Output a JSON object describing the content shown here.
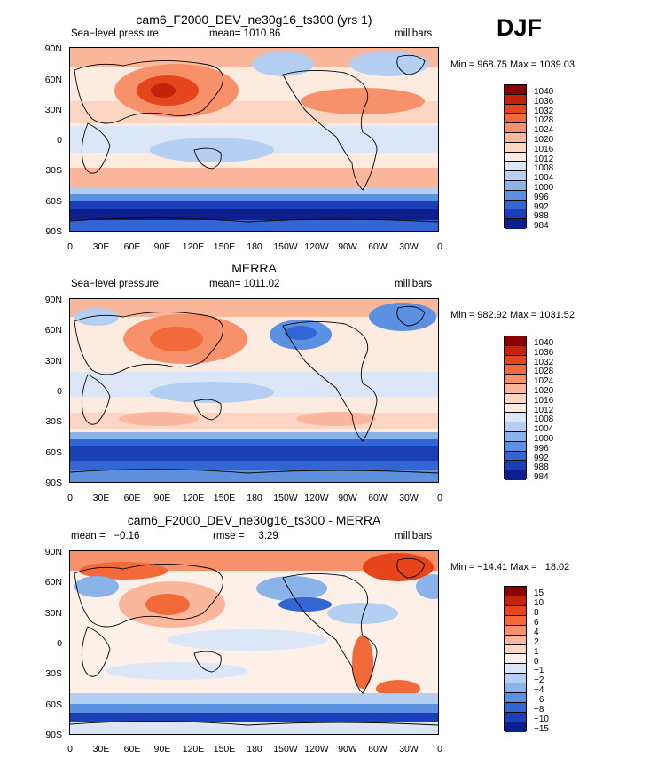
{
  "season": "DJF",
  "chart_data": [
    {
      "type": "heatmap",
      "title": "cam6_F2000_DEV_ne30g16_ts300 (yrs 1)",
      "variable": "Sea−level pressure",
      "stat": "mean= 1010.86",
      "units": "millibars",
      "minmax": "Min = 968.75 Max = 1039.03",
      "lat_ticks": [
        "90N",
        "60N",
        "30N",
        "0",
        "30S",
        "60S",
        "90S"
      ],
      "lon_ticks": [
        "0",
        "30E",
        "60E",
        "90E",
        "120E",
        "150E",
        "180",
        "150W",
        "120W",
        "90W",
        "60W",
        "30W",
        "0"
      ],
      "levels": [
        "1040",
        "1036",
        "1032",
        "1028",
        "1024",
        "1020",
        "1016",
        "1012",
        "1008",
        "1004",
        "1000",
        "996",
        "992",
        "988",
        "984"
      ],
      "colors": [
        "#8b0000",
        "#c1230b",
        "#e6441a",
        "#f26a3a",
        "#f7916b",
        "#fab79b",
        "#fcd6c2",
        "#fdebe0",
        "#dbe7f8",
        "#b5cff2",
        "#8ab3ea",
        "#5c90e0",
        "#3266d4",
        "#1a3fb8",
        "#0c1f8c"
      ]
    },
    {
      "type": "heatmap",
      "title": "MERRA",
      "variable": "Sea−level pressure",
      "stat": "mean= 1011.02",
      "units": "millibars",
      "minmax": "Min = 982.92 Max = 1031.52",
      "lat_ticks": [
        "90N",
        "60N",
        "30N",
        "0",
        "30S",
        "60S",
        "90S"
      ],
      "lon_ticks": [
        "0",
        "30E",
        "60E",
        "90E",
        "120E",
        "150E",
        "180",
        "150W",
        "120W",
        "90W",
        "60W",
        "30W",
        "0"
      ],
      "levels": [
        "1040",
        "1036",
        "1032",
        "1028",
        "1024",
        "1020",
        "1016",
        "1012",
        "1008",
        "1004",
        "1000",
        "996",
        "992",
        "988",
        "984"
      ],
      "colors": [
        "#8b0000",
        "#c1230b",
        "#e6441a",
        "#f26a3a",
        "#f7916b",
        "#fab79b",
        "#fcd6c2",
        "#fdebe0",
        "#dbe7f8",
        "#b5cff2",
        "#8ab3ea",
        "#5c90e0",
        "#3266d4",
        "#1a3fb8",
        "#0c1f8c"
      ]
    },
    {
      "type": "heatmap",
      "title": "cam6_F2000_DEV_ne30g16_ts300 - MERRA",
      "stat_mean": "mean =   −0.16",
      "stat_rmse": "rmse =     3.29",
      "units": "millibars",
      "minmax": "Min = −14.41 Max =   18.02",
      "lat_ticks": [
        "90N",
        "60N",
        "30N",
        "0",
        "30S",
        "60S",
        "90S"
      ],
      "lon_ticks": [
        "0",
        "30E",
        "60E",
        "90E",
        "120E",
        "150E",
        "180",
        "150W",
        "120W",
        "90W",
        "60W",
        "30W",
        "0"
      ],
      "levels": [
        "15",
        "10",
        "8",
        "6",
        "4",
        "2",
        "1",
        "0",
        "−1",
        "−2",
        "−4",
        "−6",
        "−8",
        "−10",
        "−15"
      ],
      "colors": [
        "#8b0000",
        "#c1230b",
        "#e6441a",
        "#f26a3a",
        "#f7916b",
        "#fab79b",
        "#fcd6c2",
        "#fdf0e8",
        "#dbe7f8",
        "#b5cff2",
        "#8ab3ea",
        "#5c90e0",
        "#3266d4",
        "#1a3fb8",
        "#0c1f8c"
      ]
    }
  ]
}
